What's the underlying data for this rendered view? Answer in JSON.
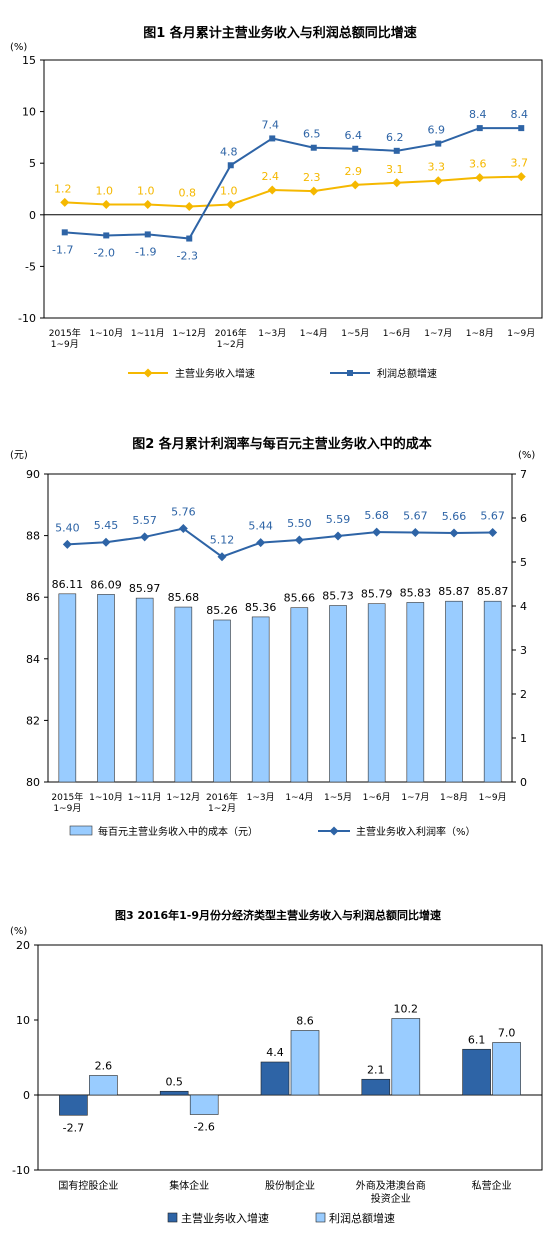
{
  "chart_data": [
    {
      "type": "line",
      "title": "图1 各月累计主营业务收入与利润总额同比增速",
      "ylabel": "(%)",
      "ylim": [
        -10,
        15
      ],
      "yticks": [
        "-10",
        "-5",
        "0",
        "5",
        "10",
        "15"
      ],
      "categories": [
        [
          "2015年",
          "1~9月"
        ],
        [
          "1~10月"
        ],
        [
          "1~11月"
        ],
        [
          "1~12月"
        ],
        [
          "2016年",
          "1~2月"
        ],
        [
          "1~3月"
        ],
        [
          "1~4月"
        ],
        [
          "1~5月"
        ],
        [
          "1~6月"
        ],
        [
          "1~7月"
        ],
        [
          "1~8月"
        ],
        [
          "1~9月"
        ]
      ],
      "series": [
        {
          "name": "主营业务收入增速",
          "color": "#F5B800",
          "marker": "diamond",
          "values": [
            1.2,
            1.0,
            1.0,
            0.8,
            1.0,
            2.4,
            2.3,
            2.9,
            3.1,
            3.3,
            3.6,
            3.7
          ],
          "labels": [
            "1.2",
            "1.0",
            "1.0",
            "0.8",
            "1.0",
            "2.4",
            "2.3",
            "2.9",
            "3.1",
            "3.3",
            "3.6",
            "3.7"
          ]
        },
        {
          "name": "利润总额增速",
          "color": "#2E64A6",
          "marker": "square",
          "values": [
            -1.7,
            -2.0,
            -1.9,
            -2.3,
            4.8,
            7.4,
            6.5,
            6.4,
            6.2,
            6.9,
            8.4,
            8.4
          ],
          "labels": [
            "-1.7",
            "-2.0",
            "-1.9",
            "-2.3",
            "4.8",
            "7.4",
            "6.5",
            "6.4",
            "6.2",
            "6.9",
            "8.4",
            "8.4"
          ]
        }
      ],
      "grid": false,
      "legend": "bottom"
    },
    {
      "type": "bar",
      "title": "图2 各月累计利润率与每百元主营业务收入中的成本",
      "ylabel_left": "(元)",
      "ylabel_right": "(%)",
      "ylim_left": [
        80,
        90
      ],
      "yticks_left": [
        "80",
        "82",
        "84",
        "86",
        "88",
        "90"
      ],
      "ylim_right": [
        0,
        7
      ],
      "yticks_right": [
        "0",
        "1",
        "2",
        "3",
        "4",
        "5",
        "6",
        "7"
      ],
      "categories": [
        [
          "2015年",
          "1~9月"
        ],
        [
          "1~10月"
        ],
        [
          "1~11月"
        ],
        [
          "1~12月"
        ],
        [
          "2016年",
          "1~2月"
        ],
        [
          "1~3月"
        ],
        [
          "1~4月"
        ],
        [
          "1~5月"
        ],
        [
          "1~6月"
        ],
        [
          "1~7月"
        ],
        [
          "1~8月"
        ],
        [
          "1~9月"
        ]
      ],
      "bar_series": {
        "name": "每百元主营业务收入中的成本（元）",
        "color": "#99CCFF",
        "values": [
          86.11,
          86.09,
          85.97,
          85.68,
          85.26,
          85.36,
          85.66,
          85.73,
          85.79,
          85.83,
          85.87,
          85.87
        ],
        "labels": [
          "86.11",
          "86.09",
          "85.97",
          "85.68",
          "85.26",
          "85.36",
          "85.66",
          "85.73",
          "85.79",
          "85.83",
          "85.87",
          "85.87"
        ]
      },
      "line_series": {
        "name": "主营业务收入利润率（%）",
        "color": "#2E64A6",
        "values": [
          5.4,
          5.45,
          5.57,
          5.76,
          5.12,
          5.44,
          5.5,
          5.59,
          5.68,
          5.67,
          5.66,
          5.67
        ],
        "labels": [
          "5.40",
          "5.45",
          "5.57",
          "5.76",
          "5.12",
          "5.44",
          "5.50",
          "5.59",
          "5.68",
          "5.67",
          "5.66",
          "5.67"
        ]
      },
      "grid": false,
      "legend": "bottom"
    },
    {
      "type": "bar",
      "title": "图3 2016年1-9月份分经济类型主营业务收入与利润总额同比增速",
      "ylabel": "(%)",
      "ylim": [
        -10,
        20
      ],
      "yticks": [
        "-10",
        "0",
        "10",
        "20"
      ],
      "categories": [
        [
          "国有控股企业"
        ],
        [
          "集体企业"
        ],
        [
          "股份制企业"
        ],
        [
          "外商及港澳台商",
          "投资企业"
        ],
        [
          "私营企业"
        ]
      ],
      "series": [
        {
          "name": "主营业务收入增速",
          "color": "#2E64A6",
          "values": [
            -2.7,
            0.5,
            4.4,
            2.1,
            6.1
          ],
          "labels": [
            "-2.7",
            "0.5",
            "4.4",
            "2.1",
            "6.1"
          ]
        },
        {
          "name": "利润总额增速",
          "color": "#99CCFF",
          "values": [
            2.6,
            -2.6,
            8.6,
            10.2,
            7.0
          ],
          "labels": [
            "2.6",
            "-2.6",
            "8.6",
            "10.2",
            "7.0"
          ]
        }
      ],
      "grid": false,
      "legend": "bottom"
    }
  ]
}
